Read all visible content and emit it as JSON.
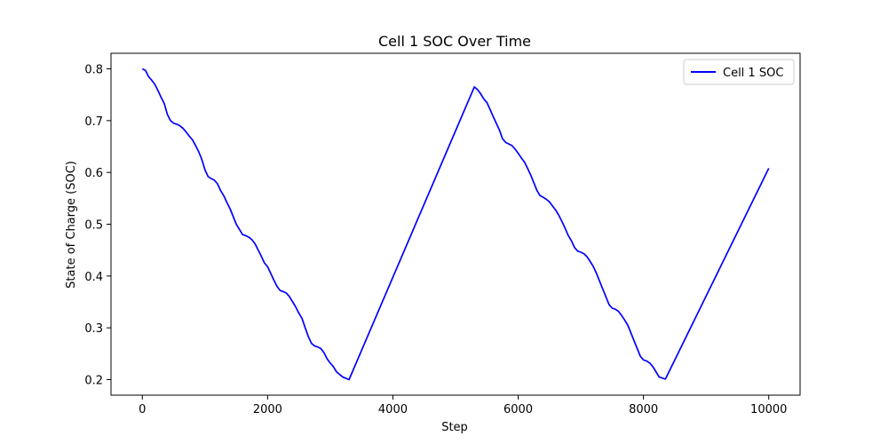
{
  "chart_data": {
    "type": "line",
    "title": "Cell 1 SOC Over Time",
    "xlabel": "Step",
    "ylabel": "State of Charge (SOC)",
    "xlim": [
      -500,
      10500
    ],
    "ylim": [
      0.17,
      0.83
    ],
    "x_ticks": [
      0,
      2000,
      4000,
      6000,
      8000,
      10000
    ],
    "y_ticks": [
      0.2,
      0.3,
      0.4,
      0.5,
      0.6,
      0.7,
      0.8
    ],
    "x_tick_labels": [
      "0",
      "2000",
      "4000",
      "6000",
      "8000",
      "10000"
    ],
    "y_tick_labels": [
      "0.2",
      "0.3",
      "0.4",
      "0.5",
      "0.6",
      "0.7",
      "0.8"
    ],
    "grid": false,
    "legend": {
      "position": "top-right",
      "entries": [
        "Cell 1 SOC"
      ]
    },
    "series": [
      {
        "name": "Cell 1 SOC",
        "color": "#0000ff",
        "points": [
          [
            0,
            0.8
          ],
          [
            50,
            0.797
          ],
          [
            100,
            0.785
          ],
          [
            150,
            0.778
          ],
          [
            200,
            0.77
          ],
          [
            250,
            0.758
          ],
          [
            300,
            0.745
          ],
          [
            350,
            0.733
          ],
          [
            400,
            0.712
          ],
          [
            450,
            0.7
          ],
          [
            500,
            0.695
          ],
          [
            550,
            0.693
          ],
          [
            600,
            0.69
          ],
          [
            650,
            0.685
          ],
          [
            700,
            0.678
          ],
          [
            750,
            0.67
          ],
          [
            800,
            0.663
          ],
          [
            850,
            0.652
          ],
          [
            900,
            0.64
          ],
          [
            950,
            0.625
          ],
          [
            1000,
            0.605
          ],
          [
            1050,
            0.592
          ],
          [
            1100,
            0.588
          ],
          [
            1150,
            0.585
          ],
          [
            1200,
            0.578
          ],
          [
            1250,
            0.565
          ],
          [
            1300,
            0.555
          ],
          [
            1350,
            0.542
          ],
          [
            1400,
            0.53
          ],
          [
            1450,
            0.515
          ],
          [
            1500,
            0.5
          ],
          [
            1550,
            0.49
          ],
          [
            1600,
            0.48
          ],
          [
            1650,
            0.478
          ],
          [
            1700,
            0.475
          ],
          [
            1750,
            0.47
          ],
          [
            1800,
            0.462
          ],
          [
            1850,
            0.45
          ],
          [
            1900,
            0.438
          ],
          [
            1950,
            0.425
          ],
          [
            2000,
            0.418
          ],
          [
            2050,
            0.405
          ],
          [
            2100,
            0.392
          ],
          [
            2150,
            0.38
          ],
          [
            2200,
            0.372
          ],
          [
            2250,
            0.37
          ],
          [
            2300,
            0.367
          ],
          [
            2350,
            0.36
          ],
          [
            2400,
            0.35
          ],
          [
            2450,
            0.34
          ],
          [
            2500,
            0.328
          ],
          [
            2550,
            0.318
          ],
          [
            2600,
            0.3
          ],
          [
            2650,
            0.283
          ],
          [
            2700,
            0.27
          ],
          [
            2750,
            0.265
          ],
          [
            2800,
            0.263
          ],
          [
            2850,
            0.26
          ],
          [
            2900,
            0.252
          ],
          [
            2950,
            0.24
          ],
          [
            3000,
            0.232
          ],
          [
            3050,
            0.225
          ],
          [
            3100,
            0.215
          ],
          [
            3150,
            0.21
          ],
          [
            3200,
            0.205
          ],
          [
            3300,
            0.2
          ],
          [
            5300,
            0.765
          ],
          [
            5350,
            0.76
          ],
          [
            5400,
            0.752
          ],
          [
            5450,
            0.742
          ],
          [
            5500,
            0.735
          ],
          [
            5550,
            0.722
          ],
          [
            5600,
            0.708
          ],
          [
            5650,
            0.695
          ],
          [
            5700,
            0.682
          ],
          [
            5750,
            0.665
          ],
          [
            5800,
            0.658
          ],
          [
            5850,
            0.655
          ],
          [
            5900,
            0.652
          ],
          [
            5950,
            0.645
          ],
          [
            6000,
            0.637
          ],
          [
            6050,
            0.628
          ],
          [
            6100,
            0.62
          ],
          [
            6150,
            0.608
          ],
          [
            6200,
            0.595
          ],
          [
            6250,
            0.58
          ],
          [
            6300,
            0.565
          ],
          [
            6350,
            0.555
          ],
          [
            6400,
            0.552
          ],
          [
            6450,
            0.548
          ],
          [
            6500,
            0.543
          ],
          [
            6550,
            0.535
          ],
          [
            6600,
            0.527
          ],
          [
            6650,
            0.517
          ],
          [
            6700,
            0.505
          ],
          [
            6750,
            0.492
          ],
          [
            6800,
            0.478
          ],
          [
            6850,
            0.468
          ],
          [
            6900,
            0.455
          ],
          [
            6950,
            0.448
          ],
          [
            7000,
            0.446
          ],
          [
            7050,
            0.443
          ],
          [
            7100,
            0.437
          ],
          [
            7150,
            0.428
          ],
          [
            7200,
            0.418
          ],
          [
            7250,
            0.405
          ],
          [
            7300,
            0.39
          ],
          [
            7350,
            0.375
          ],
          [
            7400,
            0.36
          ],
          [
            7450,
            0.345
          ],
          [
            7500,
            0.338
          ],
          [
            7550,
            0.336
          ],
          [
            7600,
            0.332
          ],
          [
            7650,
            0.324
          ],
          [
            7700,
            0.315
          ],
          [
            7750,
            0.305
          ],
          [
            7800,
            0.29
          ],
          [
            7850,
            0.275
          ],
          [
            7900,
            0.26
          ],
          [
            7950,
            0.245
          ],
          [
            8000,
            0.238
          ],
          [
            8050,
            0.236
          ],
          [
            8100,
            0.232
          ],
          [
            8150,
            0.225
          ],
          [
            8200,
            0.215
          ],
          [
            8250,
            0.205
          ],
          [
            8300,
            0.203
          ],
          [
            8350,
            0.201
          ],
          [
            10000,
            0.608
          ]
        ]
      }
    ]
  }
}
